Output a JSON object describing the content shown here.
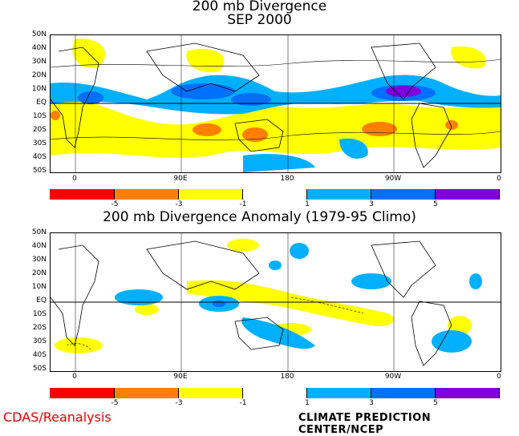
{
  "titles": {
    "top_line1": "200 mb Divergence",
    "top_line2": "SEP 2000",
    "bottom": "200 mb Divergence Anomaly (1979-95 Climo)"
  },
  "lat_labels": [
    "50N",
    "40N",
    "30N",
    "20N",
    "10N",
    "EQ",
    "10S",
    "20S",
    "30S",
    "40S",
    "50S"
  ],
  "lon_labels": [
    "0",
    "90E",
    "180",
    "90W",
    "0"
  ],
  "colorbar": {
    "colors": [
      "#ff0000",
      "#ff8000",
      "#ffdd00",
      "#ffff00",
      "#ffffff",
      "#00b0ff",
      "#0070ff",
      "#8000e0"
    ],
    "tick_labels": [
      "-5",
      "-3",
      "-1",
      "1",
      "3",
      "5"
    ]
  },
  "footer": {
    "left": "CDAS/Reanalysis",
    "right": "CLIMATE PREDICTION CENTER/NCEP"
  }
}
